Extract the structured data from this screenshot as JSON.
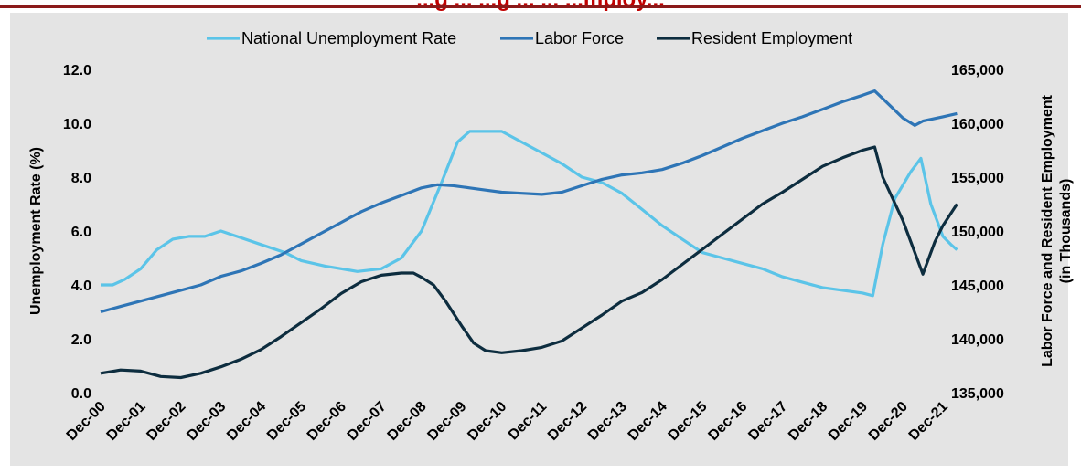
{
  "colors": {
    "title": "#c00000",
    "rule": "#8b1a1a",
    "background": "#e4e4e4"
  },
  "chart_data": {
    "type": "line",
    "title": "...g ... ...g ... ... ...mploy...",
    "ylabel": "Unemployment Rate (%)",
    "y2label_line1": "Labor Force and Resident Employment",
    "y2label_line2": "(in Thousands)",
    "legend_position": "top",
    "grid": false,
    "x_categories": [
      "Dec-00",
      "Dec-01",
      "Dec-02",
      "Dec-03",
      "Dec-04",
      "Dec-05",
      "Dec-06",
      "Dec-07",
      "Dec-08",
      "Dec-09",
      "Dec-10",
      "Dec-11",
      "Dec-12",
      "Dec-13",
      "Dec-14",
      "Dec-15",
      "Dec-16",
      "Dec-17",
      "Dec-18",
      "Dec-19",
      "Dec-20",
      "Dec-21"
    ],
    "ylim": [
      0,
      12
    ],
    "yticks": [
      "0.0",
      "2.0",
      "4.0",
      "6.0",
      "8.0",
      "10.0",
      "12.0"
    ],
    "y2lim": [
      135000,
      165000
    ],
    "y2ticks": [
      "135,000",
      "140,000",
      "145,000",
      "150,000",
      "155,000",
      "160,000",
      "165,000"
    ],
    "series": [
      {
        "name": "National Unemployment Rate",
        "axis": "left",
        "color": "#5bc4e8",
        "points": [
          [
            0,
            4.0
          ],
          [
            0.3,
            4.0
          ],
          [
            0.6,
            4.2
          ],
          [
            1.0,
            4.6
          ],
          [
            1.4,
            5.3
          ],
          [
            1.8,
            5.7
          ],
          [
            2.2,
            5.8
          ],
          [
            2.6,
            5.8
          ],
          [
            3.0,
            6.0
          ],
          [
            3.4,
            5.8
          ],
          [
            4.0,
            5.5
          ],
          [
            4.6,
            5.2
          ],
          [
            5.0,
            4.9
          ],
          [
            5.6,
            4.7
          ],
          [
            6.0,
            4.6
          ],
          [
            6.4,
            4.5
          ],
          [
            7.0,
            4.6
          ],
          [
            7.5,
            5.0
          ],
          [
            8.0,
            6.0
          ],
          [
            8.5,
            7.8
          ],
          [
            8.9,
            9.3
          ],
          [
            9.2,
            9.7
          ],
          [
            10.0,
            9.7
          ],
          [
            10.5,
            9.3
          ],
          [
            11.0,
            8.9
          ],
          [
            11.5,
            8.5
          ],
          [
            12.0,
            8.0
          ],
          [
            12.5,
            7.8
          ],
          [
            13.0,
            7.4
          ],
          [
            13.5,
            6.8
          ],
          [
            14.0,
            6.2
          ],
          [
            14.5,
            5.7
          ],
          [
            15.0,
            5.2
          ],
          [
            15.5,
            5.0
          ],
          [
            16.0,
            4.8
          ],
          [
            16.5,
            4.6
          ],
          [
            17.0,
            4.3
          ],
          [
            17.5,
            4.1
          ],
          [
            18.0,
            3.9
          ],
          [
            18.5,
            3.8
          ],
          [
            19.0,
            3.7
          ],
          [
            19.25,
            3.6
          ],
          [
            19.5,
            5.5
          ],
          [
            19.8,
            7.2
          ],
          [
            20.2,
            8.2
          ],
          [
            20.45,
            8.7
          ],
          [
            20.7,
            7.0
          ],
          [
            21.0,
            5.8
          ],
          [
            21.2,
            5.5
          ],
          [
            21.35,
            5.3
          ]
        ]
      },
      {
        "name": "Labor Force",
        "axis": "right",
        "color": "#2e75b6",
        "points": [
          [
            0,
            142500
          ],
          [
            0.5,
            143000
          ],
          [
            1.0,
            143500
          ],
          [
            1.5,
            144000
          ],
          [
            2.0,
            144500
          ],
          [
            2.5,
            145000
          ],
          [
            3.0,
            145800
          ],
          [
            3.5,
            146300
          ],
          [
            4.0,
            147000
          ],
          [
            4.5,
            147800
          ],
          [
            5.0,
            148800
          ],
          [
            5.5,
            149800
          ],
          [
            6.0,
            150800
          ],
          [
            6.5,
            151800
          ],
          [
            7.0,
            152600
          ],
          [
            7.5,
            153300
          ],
          [
            8.0,
            154000
          ],
          [
            8.4,
            154300
          ],
          [
            8.8,
            154200
          ],
          [
            9.2,
            154000
          ],
          [
            9.6,
            153800
          ],
          [
            10.0,
            153600
          ],
          [
            10.5,
            153500
          ],
          [
            11.0,
            153400
          ],
          [
            11.5,
            153600
          ],
          [
            12.0,
            154200
          ],
          [
            12.5,
            154800
          ],
          [
            13.0,
            155200
          ],
          [
            13.5,
            155400
          ],
          [
            14.0,
            155700
          ],
          [
            14.5,
            156300
          ],
          [
            15.0,
            157000
          ],
          [
            15.5,
            157800
          ],
          [
            16.0,
            158600
          ],
          [
            16.5,
            159300
          ],
          [
            17.0,
            160000
          ],
          [
            17.5,
            160600
          ],
          [
            18.0,
            161300
          ],
          [
            18.5,
            162000
          ],
          [
            19.0,
            162600
          ],
          [
            19.3,
            163000
          ],
          [
            19.5,
            162300
          ],
          [
            20.0,
            160500
          ],
          [
            20.3,
            159800
          ],
          [
            20.5,
            160200
          ],
          [
            21.0,
            160600
          ],
          [
            21.35,
            160900
          ]
        ]
      },
      {
        "name": "Resident Employment",
        "axis": "right",
        "color": "#0d2d3f",
        "points": [
          [
            0,
            136800
          ],
          [
            0.5,
            137100
          ],
          [
            1.0,
            137000
          ],
          [
            1.5,
            136500
          ],
          [
            2.0,
            136400
          ],
          [
            2.5,
            136800
          ],
          [
            3.0,
            137400
          ],
          [
            3.5,
            138100
          ],
          [
            4.0,
            139000
          ],
          [
            4.5,
            140200
          ],
          [
            5.0,
            141500
          ],
          [
            5.5,
            142800
          ],
          [
            6.0,
            144200
          ],
          [
            6.5,
            145300
          ],
          [
            7.0,
            145900
          ],
          [
            7.5,
            146100
          ],
          [
            7.8,
            146100
          ],
          [
            8.0,
            145700
          ],
          [
            8.3,
            145000
          ],
          [
            8.6,
            143500
          ],
          [
            9.0,
            141200
          ],
          [
            9.3,
            139600
          ],
          [
            9.6,
            138900
          ],
          [
            10.0,
            138700
          ],
          [
            10.5,
            138900
          ],
          [
            11.0,
            139200
          ],
          [
            11.5,
            139800
          ],
          [
            12.0,
            141000
          ],
          [
            12.5,
            142200
          ],
          [
            13.0,
            143500
          ],
          [
            13.5,
            144300
          ],
          [
            14.0,
            145500
          ],
          [
            14.5,
            146900
          ],
          [
            15.0,
            148300
          ],
          [
            15.5,
            149700
          ],
          [
            16.0,
            151100
          ],
          [
            16.5,
            152500
          ],
          [
            17.0,
            153600
          ],
          [
            17.5,
            154800
          ],
          [
            18.0,
            156000
          ],
          [
            18.5,
            156800
          ],
          [
            19.0,
            157500
          ],
          [
            19.3,
            157800
          ],
          [
            19.5,
            155000
          ],
          [
            20.0,
            151000
          ],
          [
            20.3,
            148000
          ],
          [
            20.5,
            146000
          ],
          [
            20.8,
            149000
          ],
          [
            21.0,
            150500
          ],
          [
            21.35,
            152500
          ]
        ]
      }
    ]
  }
}
